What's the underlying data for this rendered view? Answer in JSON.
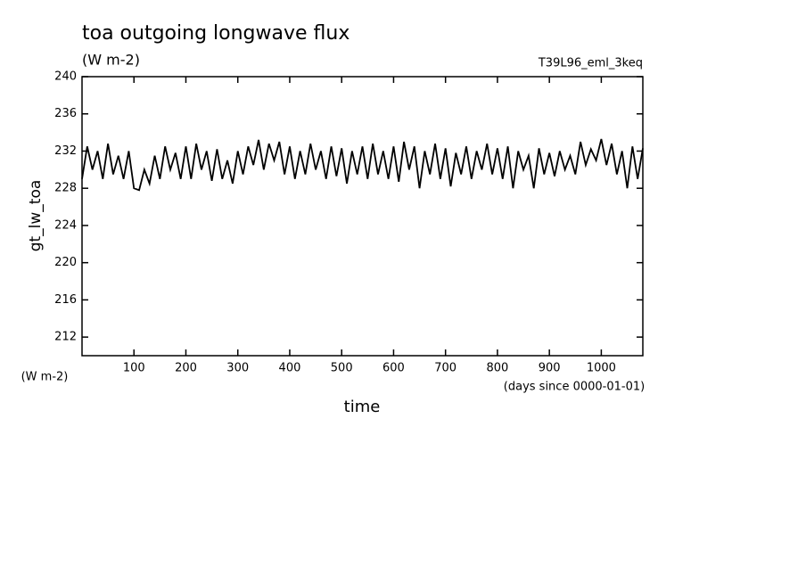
{
  "chart_data": {
    "type": "line",
    "title": "toa outgoing longwave flux",
    "subtitle": "(W m-2)",
    "annotation": "T39L96_eml_3keq",
    "y_label": "gt_lw_toa",
    "y_units": "(W m-2)",
    "x_label": "time",
    "x_units": "(days since 0000-01-01)",
    "x": [
      0,
      10,
      20,
      30,
      40,
      50,
      60,
      70,
      80,
      90,
      100,
      110,
      120,
      130,
      140,
      150,
      160,
      170,
      180,
      190,
      200,
      210,
      220,
      230,
      240,
      250,
      260,
      270,
      280,
      290,
      300,
      310,
      320,
      330,
      340,
      350,
      360,
      370,
      380,
      390,
      400,
      410,
      420,
      430,
      440,
      450,
      460,
      470,
      480,
      490,
      500,
      510,
      520,
      530,
      540,
      550,
      560,
      570,
      580,
      590,
      600,
      610,
      620,
      630,
      640,
      650,
      660,
      670,
      680,
      690,
      700,
      710,
      720,
      730,
      740,
      750,
      760,
      770,
      780,
      790,
      800,
      810,
      820,
      830,
      840,
      850,
      860,
      870,
      880,
      890,
      900,
      910,
      920,
      930,
      940,
      950,
      960,
      970,
      980,
      990,
      1000,
      1010,
      1020,
      1030,
      1040,
      1050,
      1060,
      1070,
      1080
    ],
    "series": [
      {
        "color": "#000000",
        "values": [
          229,
          232.5,
          230,
          232,
          229,
          232.8,
          229.5,
          231.5,
          229,
          232,
          228,
          227.8,
          230,
          228.5,
          231.5,
          229,
          232.5,
          230,
          231.8,
          229,
          232.5,
          229,
          232.8,
          230,
          232,
          228.8,
          232.2,
          229,
          231,
          228.5,
          232,
          229.5,
          232.5,
          230.5,
          233.2,
          230,
          232.8,
          231,
          233,
          229.5,
          232.5,
          229,
          232,
          229.5,
          232.8,
          230,
          232,
          229,
          232.5,
          229.3,
          232.3,
          228.5,
          232,
          229.5,
          232.5,
          229,
          232.8,
          229.5,
          232,
          229,
          232.5,
          228.7,
          233,
          230,
          232.5,
          228,
          232,
          229.5,
          232.8,
          229,
          232.3,
          228.2,
          231.8,
          229.5,
          232.5,
          229,
          232,
          230,
          232.8,
          229.5,
          232.3,
          229,
          232.5,
          228,
          232,
          230,
          231.5,
          228,
          232.3,
          229.5,
          231.8,
          229.3,
          232,
          230,
          231.5,
          229.5,
          233,
          230.5,
          232.2,
          231,
          233.3,
          230.5,
          232.8,
          229.5,
          232,
          228,
          232.5,
          229,
          232.3
        ]
      }
    ],
    "xlim": [
      0,
      1080
    ],
    "ylim": [
      210,
      240
    ],
    "xticks": [
      100,
      200,
      300,
      400,
      500,
      600,
      700,
      800,
      900,
      1000
    ],
    "yticks": [
      212,
      216,
      220,
      224,
      228,
      232,
      236,
      240
    ]
  }
}
